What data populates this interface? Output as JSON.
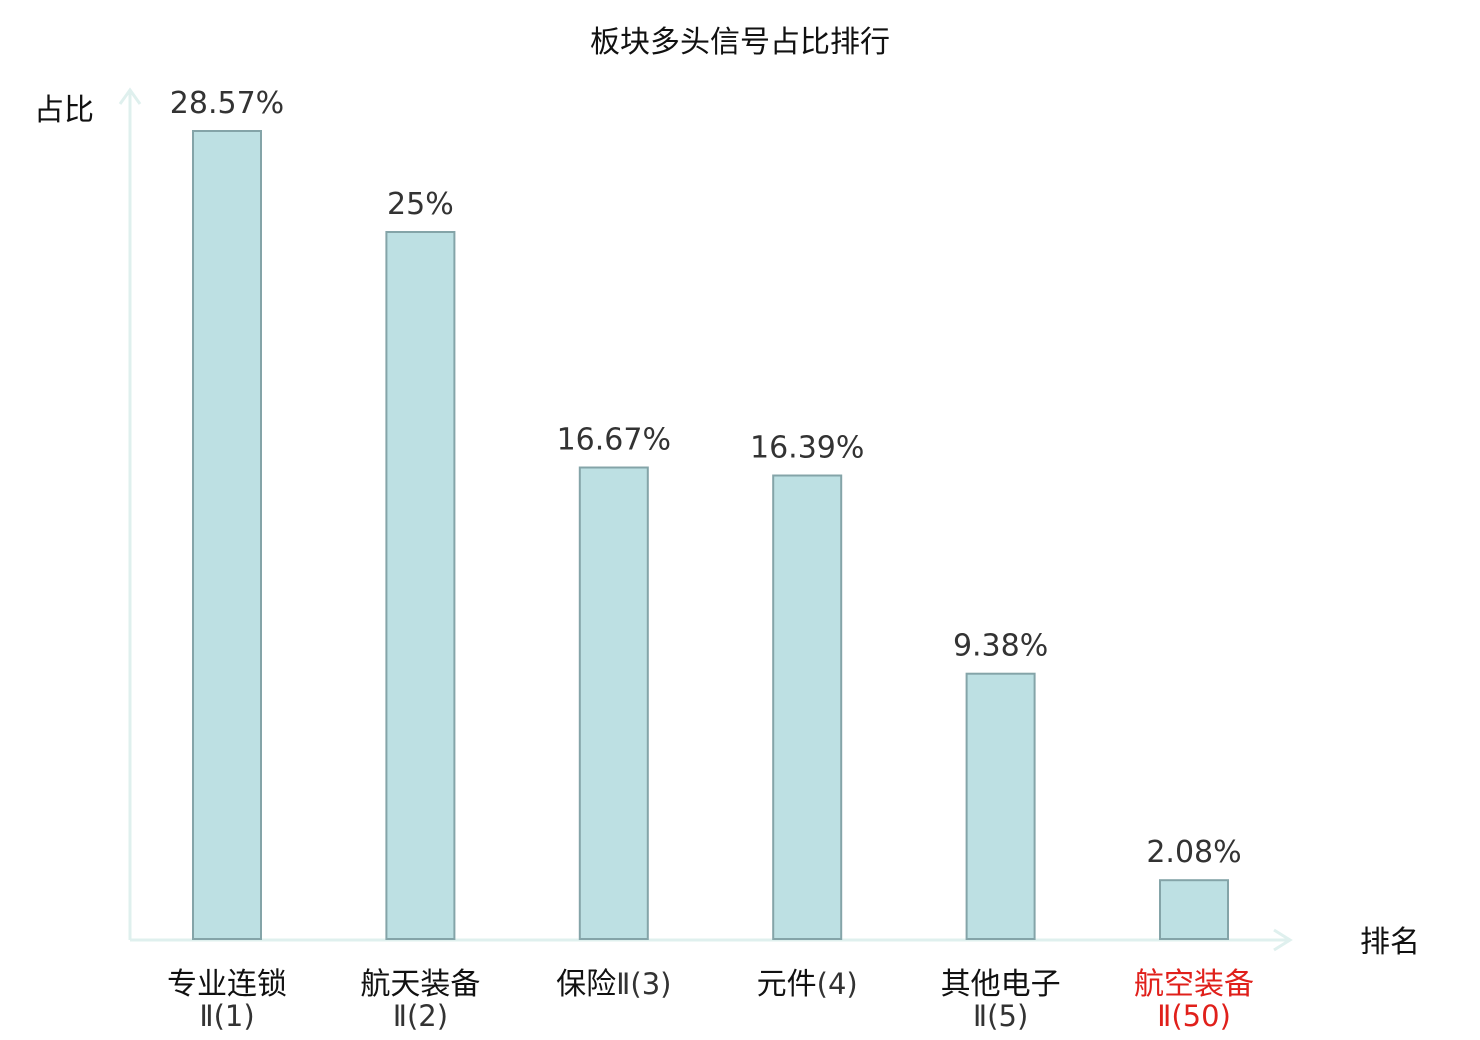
{
  "chart_data": {
    "type": "bar",
    "title": "板块多头信号占比排行",
    "ylabel": "占比",
    "xlabel": "排名",
    "categories": [
      {
        "main": "专业连锁",
        "sub": "Ⅱ(1)"
      },
      {
        "main": "航天装备",
        "sub": "Ⅱ(2)"
      },
      {
        "main": "保险",
        "sub": "Ⅱ(3)"
      },
      {
        "main": "元件",
        "sub": "(4)"
      },
      {
        "main": "其他电子",
        "sub": "Ⅱ(5)"
      },
      {
        "main": "航空装备",
        "sub": "Ⅱ(50)"
      }
    ],
    "values": [
      28.57,
      25,
      16.67,
      16.39,
      9.38,
      2.08
    ],
    "value_labels": [
      "28.57%",
      "25%",
      "16.67%",
      "16.39%",
      "9.38%",
      "2.08%"
    ],
    "highlight_index": 5,
    "ylim": [
      0,
      28.57
    ],
    "grid": false,
    "colors": {
      "bar_fill": "#bde0e3",
      "bar_stroke": "#84a4a8",
      "axis": "#dff0ee",
      "highlight": "#e0201b"
    }
  }
}
